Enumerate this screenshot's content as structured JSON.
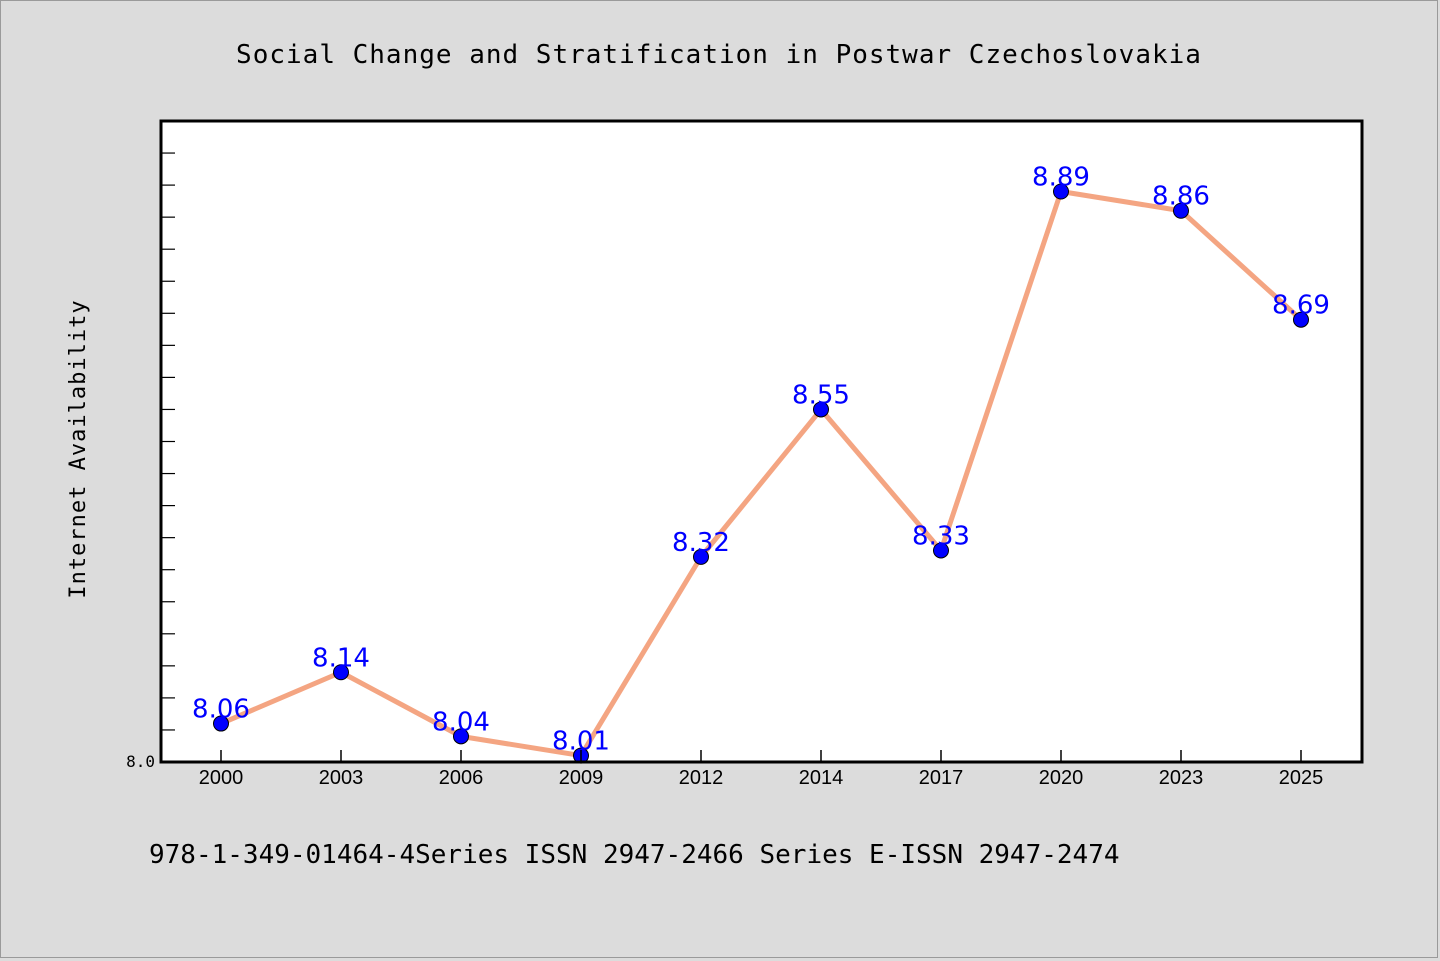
{
  "chart_data": {
    "type": "line",
    "title": "Social Change and Stratification in Postwar Czechoslovakia",
    "ylabel": "Internet Availability",
    "xlabel": "",
    "categories": [
      "2000",
      "2003",
      "2006",
      "2009",
      "2012",
      "2014",
      "2017",
      "2020",
      "2023",
      "2025"
    ],
    "series": [
      {
        "values": [
          8.06,
          8.14,
          8.04,
          8.01,
          8.32,
          8.55,
          8.33,
          8.89,
          8.86,
          8.69
        ]
      }
    ],
    "data_labels": [
      "8.06",
      "8.14",
      "8.04",
      "8.01",
      "8.32",
      "8.55",
      "8.33",
      "8.89",
      "8.86",
      "8.69"
    ],
    "y_tick_labels": [
      "8.0"
    ],
    "ylim": [
      8.0,
      9.0
    ],
    "grid": false,
    "colors": {
      "line": "#f4a582",
      "marker": "#0000ff",
      "data_label": "#0000ff",
      "background": "#dcdcdc",
      "plot_background": "#ffffff"
    }
  },
  "footer_text": "978-1-349-01464-4Series ISSN 2947-2466 Series E-ISSN 2947-2474"
}
